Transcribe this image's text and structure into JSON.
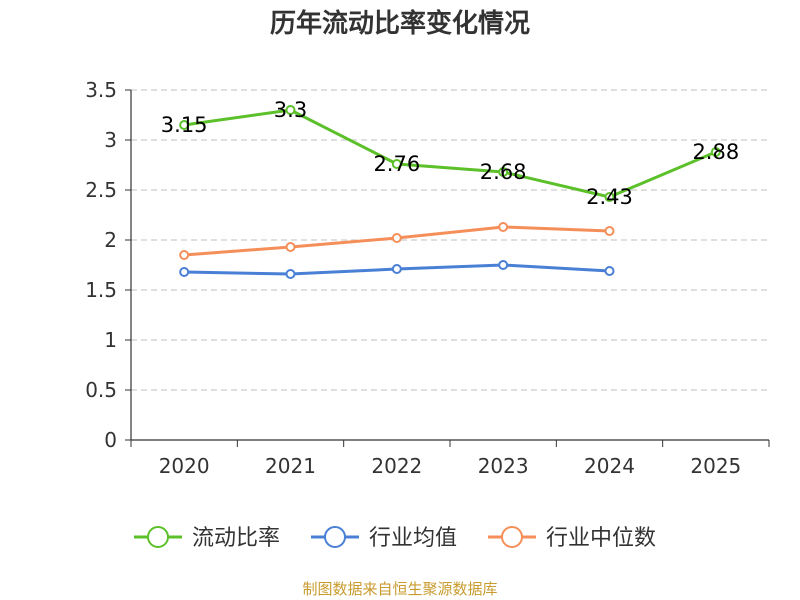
{
  "chart_data": {
    "type": "line",
    "title": "历年流动比率变化情况",
    "categories": [
      "2020",
      "2021",
      "2022",
      "2023",
      "2024",
      "2025"
    ],
    "ylim": [
      0,
      3.5
    ],
    "yticks": [
      "0",
      "0.5",
      "1",
      "1.5",
      "2",
      "2.5",
      "3",
      "3.5"
    ],
    "grid": true,
    "legend_position": "bottom",
    "series": [
      {
        "name": "流动比率",
        "color": "#5cc02a",
        "values": [
          3.15,
          3.3,
          2.76,
          2.68,
          2.43,
          2.88
        ],
        "labels": [
          "3.15",
          "3.3",
          "2.76",
          "2.68",
          "2.43",
          "2.88"
        ]
      },
      {
        "name": "行业均值",
        "color": "#4a7fd6",
        "values": [
          1.68,
          1.66,
          1.71,
          1.75,
          1.69,
          null
        ]
      },
      {
        "name": "行业中位数",
        "color": "#f58f5a",
        "values": [
          1.85,
          1.93,
          2.02,
          2.13,
          2.09,
          null
        ]
      }
    ]
  },
  "source_text": "制图数据来自恒生聚源数据库"
}
